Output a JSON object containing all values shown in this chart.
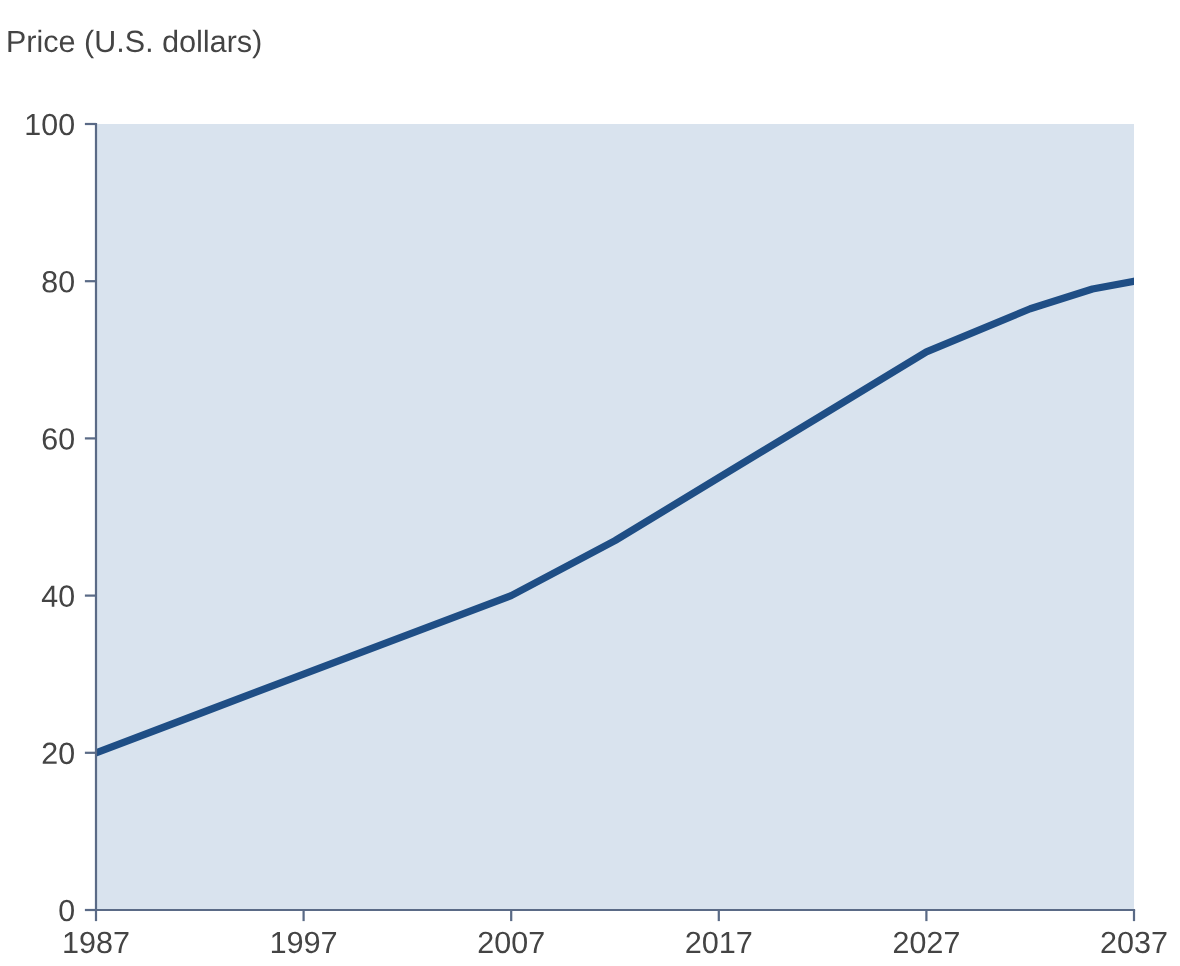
{
  "chart_data": {
    "type": "line",
    "ylabel": "Price (U.S. dollars)",
    "x": [
      1987,
      1992,
      1997,
      2002,
      2007,
      2012,
      2017,
      2022,
      2027,
      2032,
      2035,
      2037
    ],
    "series": [
      {
        "color": "#1f4e85",
        "values": [
          20,
          25,
          30,
          35,
          40,
          47,
          55,
          63,
          71,
          76.5,
          79,
          80
        ]
      }
    ],
    "xlim": [
      1987,
      2037
    ],
    "xticks": [
      1987,
      1997,
      2007,
      2017,
      2027,
      2037
    ],
    "ylim": [
      0,
      100
    ],
    "yticks": [
      0,
      20,
      40,
      60,
      80,
      100
    ],
    "grid": false,
    "legend": false,
    "marker": "none",
    "line_style": "solid"
  }
}
